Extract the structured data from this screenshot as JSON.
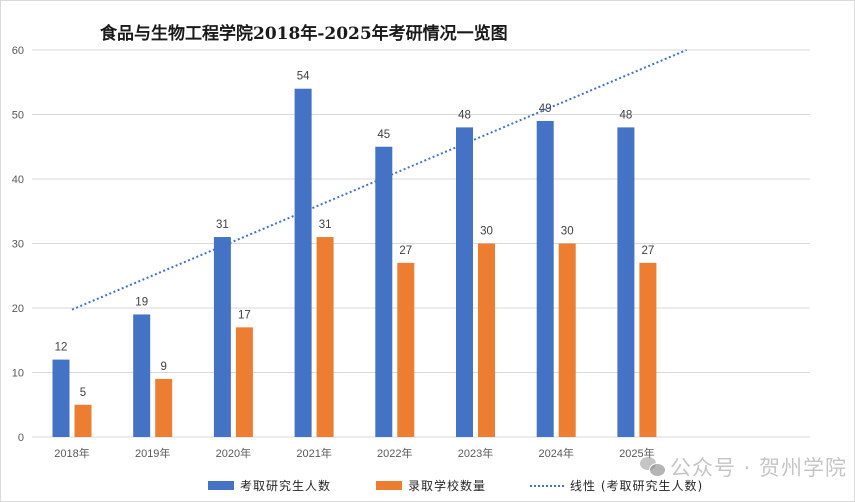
{
  "chart_data": {
    "type": "bar",
    "title": "食品与生物工程学院2018年-2025年考研情况一览图",
    "xlabel": "",
    "ylabel": "",
    "categories": [
      "2018年",
      "2019年",
      "2020年",
      "2021年",
      "2022年",
      "2023年",
      "2024年",
      "2025年"
    ],
    "series": [
      {
        "name": "考取研究生人数",
        "type": "bar",
        "color": "#4472c4",
        "values": [
          12,
          19,
          31,
          54,
          45,
          48,
          49,
          48
        ]
      },
      {
        "name": "录取学校数量",
        "type": "bar",
        "color": "#ed7d31",
        "values": [
          5,
          9,
          17,
          31,
          27,
          30,
          30,
          27
        ]
      }
    ],
    "trendline": {
      "name": "线性 (考取研究生人数)",
      "type": "linear",
      "of_series": "考取研究生人数",
      "style": "dotted",
      "color": "#4472c4"
    },
    "ylim": [
      0,
      60
    ],
    "yticks": [
      0,
      10,
      20,
      30,
      40,
      50,
      60
    ],
    "grid": true,
    "data_labels": true,
    "legend": "bottom",
    "legend_entries": [
      "考取研究生人数",
      "录取学校数量",
      "线性 (考取研究生人数)"
    ]
  },
  "watermark": {
    "text": "公众号 · 贺州学院",
    "icon": "wechat-icon"
  }
}
